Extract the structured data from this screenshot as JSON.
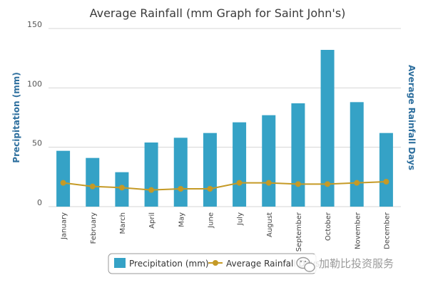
{
  "colors": {
    "bar": "#35a2c6",
    "line": "#c59a26",
    "grid": "#d6d6d6",
    "axis_title": "#2e6f9e"
  },
  "chart_data": {
    "type": "bar",
    "title": "Average Rainfall (mm Graph for Saint John's)",
    "ylabel": "Precipitation (mm)",
    "y2label": "Average Rainfall Days",
    "ylim": [
      0,
      150
    ],
    "yticks": [
      0,
      50,
      100,
      150
    ],
    "categories": [
      "January",
      "February",
      "March",
      "April",
      "May",
      "June",
      "July",
      "August",
      "September",
      "October",
      "November",
      "December"
    ],
    "series": [
      {
        "name": "Precipitation (mm)",
        "type": "bar",
        "values": [
          47,
          41,
          29,
          54,
          58,
          62,
          71,
          77,
          87,
          132,
          88,
          62
        ]
      },
      {
        "name": "Average Rainfall Days",
        "type": "line",
        "values": [
          20,
          17,
          16,
          14,
          15,
          15,
          20,
          20,
          19,
          19,
          20,
          21
        ]
      }
    ],
    "legend": {
      "position": "bottom-center"
    }
  },
  "watermark": {
    "icon": "wechat-icon",
    "text": "加勒比投资服务"
  }
}
